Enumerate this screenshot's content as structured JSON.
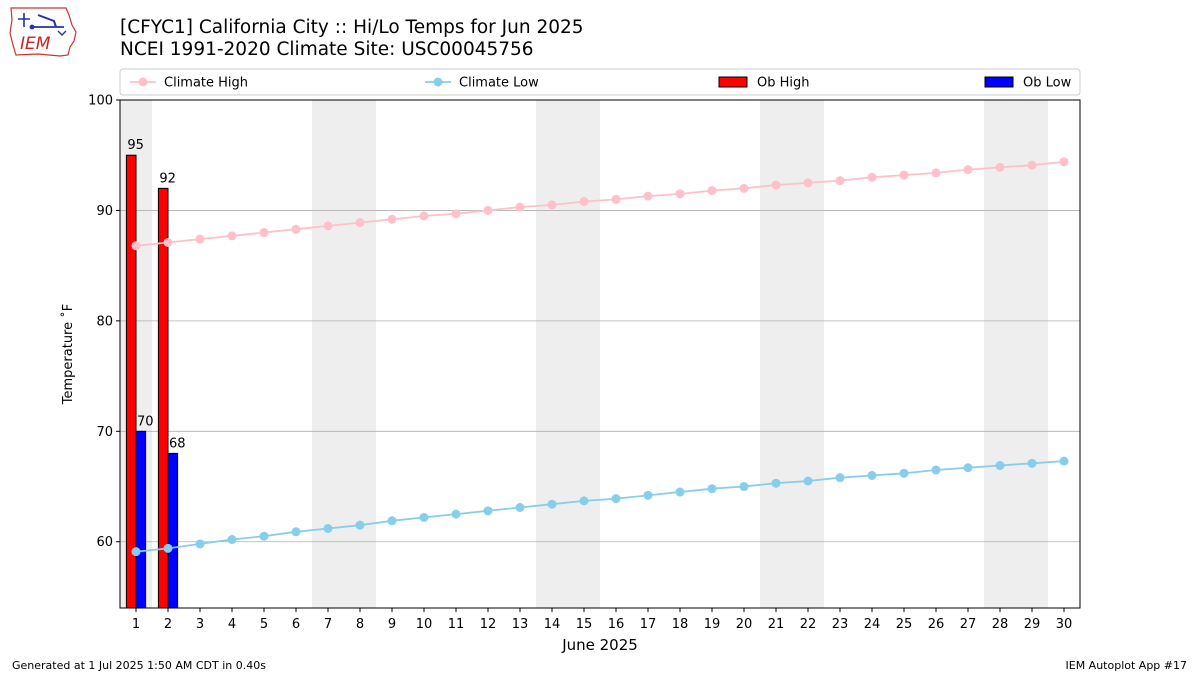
{
  "page": {
    "title_line1": "[CFYC1] California City :: Hi/Lo Temps for Jun 2025",
    "title_line2": "NCEI 1991-2020 Climate Site: USC00045756",
    "footer_left": "Generated at 1 Jul 2025 1:50 AM CDT in 0.40s",
    "footer_right": "IEM Autoplot App #17",
    "logo_text": "IEM"
  },
  "colors": {
    "climate_high": "#ffc0cb",
    "climate_low": "#87ceeb",
    "ob_high": "#ff0000",
    "ob_low": "#0000ff",
    "weekend_band": "#eeeeee",
    "grid": "#b0b0b0"
  },
  "chart_data": {
    "type": "bar",
    "xlabel": "June 2025",
    "ylabel": "Temperature ˚F",
    "xlim": [
      0.5,
      30.5
    ],
    "ylim": [
      54,
      100
    ],
    "y_ticks": [
      60,
      70,
      80,
      90,
      100
    ],
    "x_ticks": [
      1,
      2,
      3,
      4,
      5,
      6,
      7,
      8,
      9,
      10,
      11,
      12,
      13,
      14,
      15,
      16,
      17,
      18,
      19,
      20,
      21,
      22,
      23,
      24,
      25,
      26,
      27,
      28,
      29,
      30
    ],
    "grid": "horizontal",
    "legend_position": "top",
    "weekend_bands": [
      [
        0.5,
        1.5
      ],
      [
        6.5,
        8.5
      ],
      [
        13.5,
        15.5
      ],
      [
        20.5,
        22.5
      ],
      [
        27.5,
        29.5
      ]
    ],
    "days": [
      1,
      2,
      3,
      4,
      5,
      6,
      7,
      8,
      9,
      10,
      11,
      12,
      13,
      14,
      15,
      16,
      17,
      18,
      19,
      20,
      21,
      22,
      23,
      24,
      25,
      26,
      27,
      28,
      29,
      30
    ],
    "series": [
      {
        "name": "Climate High",
        "kind": "line",
        "color_key": "climate_high",
        "values": [
          86.8,
          87.1,
          87.4,
          87.7,
          88.0,
          88.3,
          88.6,
          88.9,
          89.2,
          89.5,
          89.7,
          90.0,
          90.3,
          90.5,
          90.8,
          91.0,
          91.3,
          91.5,
          91.8,
          92.0,
          92.3,
          92.5,
          92.7,
          93.0,
          93.2,
          93.4,
          93.7,
          93.9,
          94.1,
          94.4
        ]
      },
      {
        "name": "Climate Low",
        "kind": "line",
        "color_key": "climate_low",
        "values": [
          59.1,
          59.4,
          59.8,
          60.2,
          60.5,
          60.9,
          61.2,
          61.5,
          61.9,
          62.2,
          62.5,
          62.8,
          63.1,
          63.4,
          63.7,
          63.9,
          64.2,
          64.5,
          64.8,
          65.0,
          65.3,
          65.5,
          65.8,
          66.0,
          66.2,
          66.5,
          66.7,
          66.9,
          67.1,
          67.3
        ]
      },
      {
        "name": "Ob High",
        "kind": "bar",
        "color_key": "ob_high",
        "x": [
          1,
          2
        ],
        "values": [
          95,
          92
        ],
        "labels": [
          "95",
          "92"
        ]
      },
      {
        "name": "Ob Low",
        "kind": "bar",
        "color_key": "ob_low",
        "x": [
          1,
          2
        ],
        "values": [
          70,
          68
        ],
        "labels": [
          "70",
          "68"
        ]
      }
    ]
  }
}
